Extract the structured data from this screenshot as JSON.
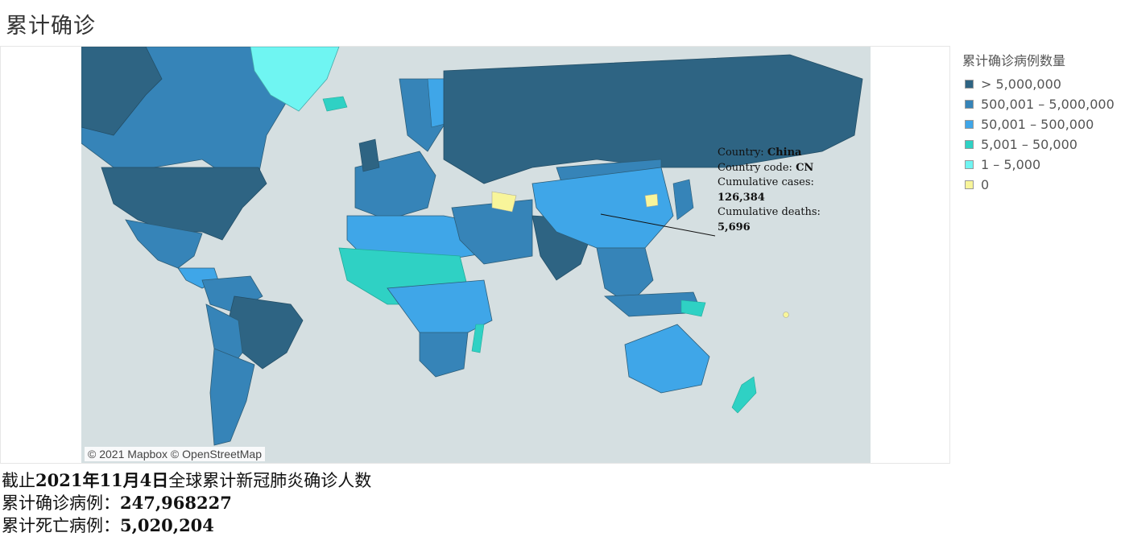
{
  "title": "累计确诊",
  "attribution": "© 2021 Mapbox © OpenStreetMap",
  "legend": {
    "title": "累计确诊病例数量",
    "items": [
      {
        "label": "> 5,000,000",
        "color": "#2e6483"
      },
      {
        "label": "500,001 – 5,000,000",
        "color": "#3684b8"
      },
      {
        "label": "50,001 – 500,000",
        "color": "#3fa6e8"
      },
      {
        "label": "5,001 – 50,000",
        "color": "#2fd1c4"
      },
      {
        "label": "1 – 5,000",
        "color": "#6ff5f2"
      },
      {
        "label": "0",
        "color": "#f8f59a"
      }
    ]
  },
  "tooltip": {
    "country_label": "Country: ",
    "country_value": "China",
    "code_label": "Country code: ",
    "code_value": "CN",
    "cases_label": "Cumulative cases:",
    "cases_value": "126,384",
    "deaths_label": "Cumulative deaths:",
    "deaths_value": "5,696"
  },
  "summary": {
    "line1_prefix": "截止",
    "line1_date": "2021年11月4日",
    "line1_suffix": "全球累计新冠肺炎确诊人数",
    "cases_label": "累计确诊病例：",
    "cases_value": "247,968227",
    "deaths_label": "累计死亡病例：",
    "deaths_value": "5,020,204"
  },
  "colors": {
    "ocean": "#d5dfe1",
    "land_unknown": "#c9d2d4"
  }
}
